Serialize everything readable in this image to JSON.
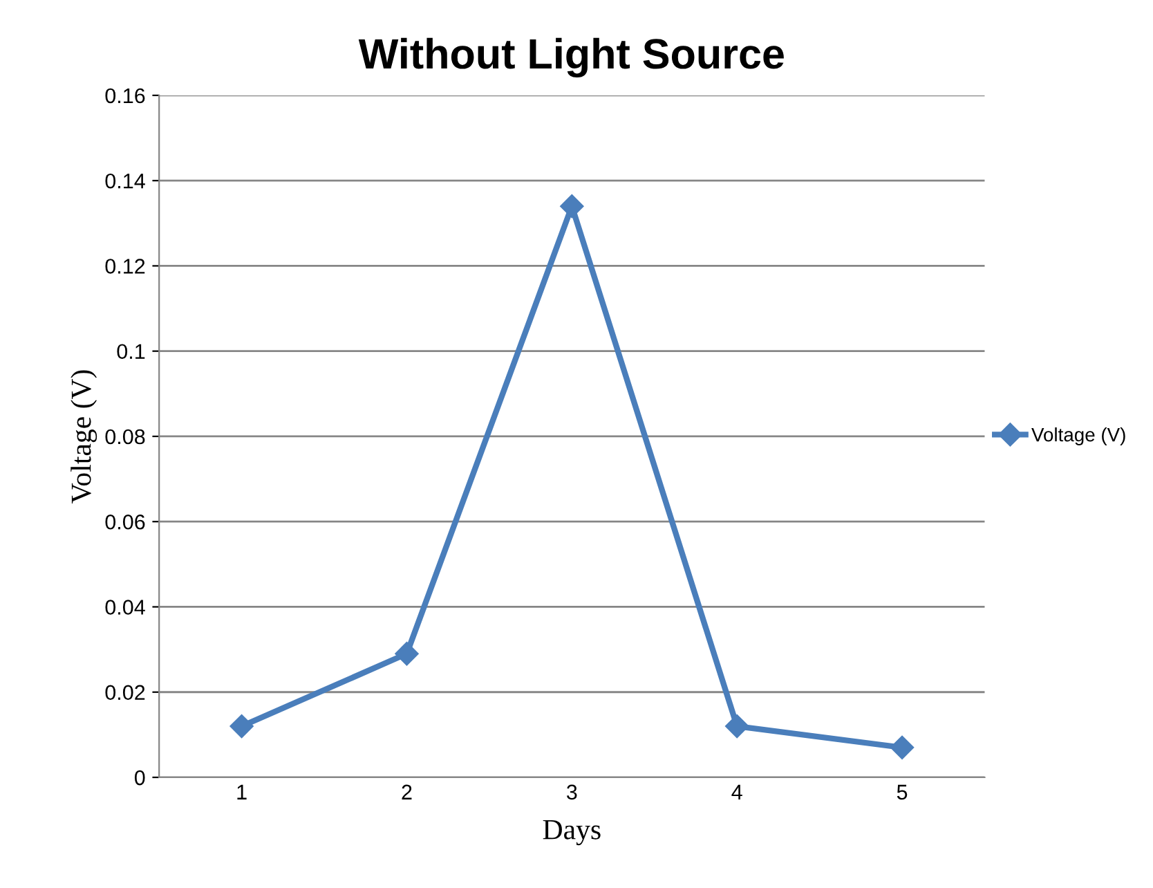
{
  "chart_data": {
    "type": "line",
    "title": "Without Light Source",
    "xlabel": "Days",
    "ylabel": "Voltage (V)",
    "categories": [
      "1",
      "2",
      "3",
      "4",
      "5"
    ],
    "series": [
      {
        "name": "Voltage (V)",
        "color": "#4a7ebb",
        "values": [
          0.012,
          0.029,
          0.134,
          0.012,
          0.007
        ]
      }
    ],
    "ylim": [
      0,
      0.16
    ],
    "yticks": [
      0,
      0.02,
      0.04,
      0.06,
      0.08,
      0.1,
      0.12,
      0.14,
      0.16
    ],
    "grid": "y",
    "legend": "right",
    "marker": "diamond",
    "line_style": "solid"
  }
}
